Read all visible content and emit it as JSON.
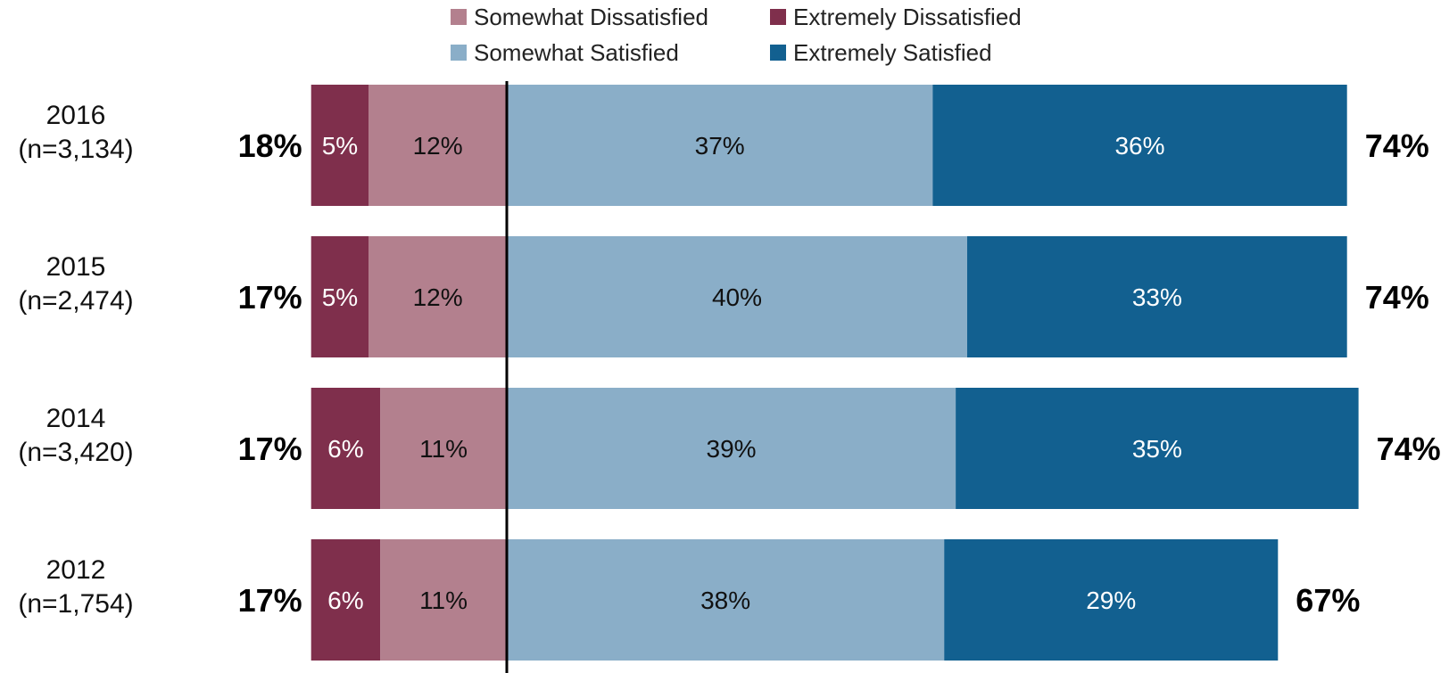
{
  "chart_data": {
    "type": "bar",
    "orientation": "horizontal",
    "stacked": "diverging",
    "categories": [
      [
        "2016",
        "(n=3,134)"
      ],
      [
        "2015",
        "(n=2,474)"
      ],
      [
        "2014",
        "(n=3,420)"
      ],
      [
        "2012",
        "(n=1,754)"
      ]
    ],
    "series": [
      {
        "name": "Extremely Dissatisfied",
        "side": "negative",
        "color": "#7f2f4c",
        "text_color": "#ffffff",
        "values": [
          5,
          5,
          6,
          6
        ],
        "labels": [
          "5%",
          "5%",
          "6%",
          "6%"
        ]
      },
      {
        "name": "Somewhat Dissatisfied",
        "side": "negative",
        "color": "#b3808e",
        "text_color": "#111111",
        "values": [
          12,
          12,
          11,
          11
        ],
        "labels": [
          "12%",
          "12%",
          "11%",
          "11%"
        ]
      },
      {
        "name": "Somewhat Satisfied",
        "side": "positive",
        "color": "#8aaec8",
        "text_color": "#111111",
        "values": [
          37,
          40,
          39,
          38
        ],
        "labels": [
          "37%",
          "40%",
          "39%",
          "38%"
        ]
      },
      {
        "name": "Extremely Satisfied",
        "side": "positive",
        "color": "#126090",
        "text_color": "#ffffff",
        "values": [
          36,
          33,
          35,
          29
        ],
        "labels": [
          "36%",
          "33%",
          "35%",
          "29%"
        ]
      }
    ],
    "totals_dissatisfied": [
      "18%",
      "17%",
      "17%",
      "17%"
    ],
    "totals_satisfied": [
      "74%",
      "74%",
      "74%",
      "67%"
    ],
    "legend": {
      "placement": "top",
      "order": [
        "Somewhat Dissatisfied",
        "Extremely Dissatisfied",
        "Somewhat Satisfied",
        "Extremely Satisfied"
      ]
    },
    "zero_line_color": "#000000",
    "grid": false
  }
}
